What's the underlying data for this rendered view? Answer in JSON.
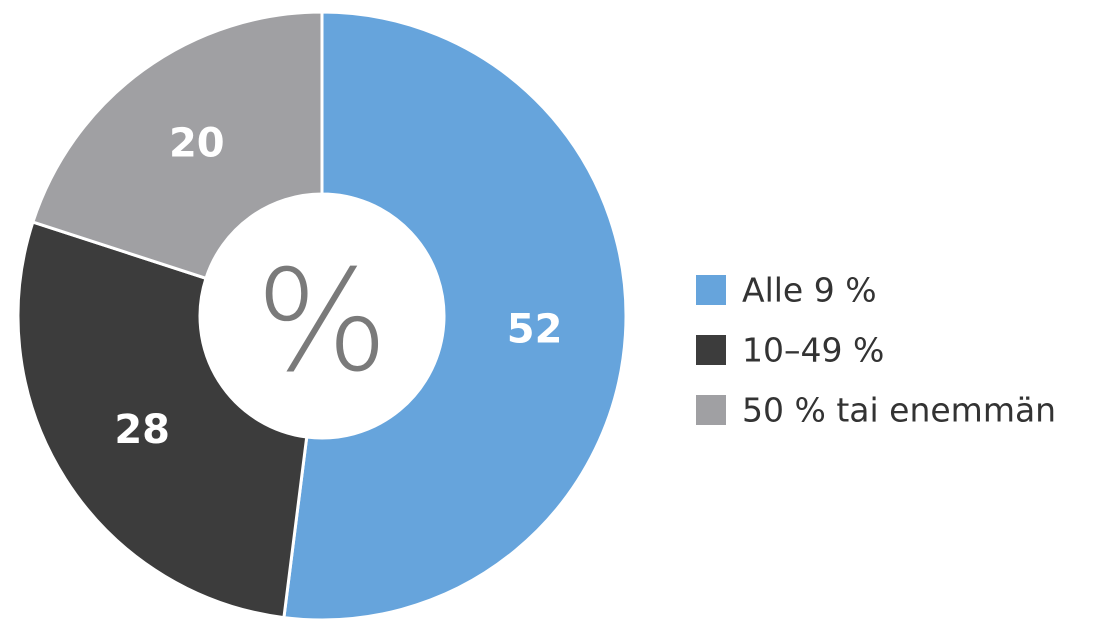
{
  "chart_data": {
    "type": "donut",
    "center_label": "%",
    "categories": [
      "Alle 9 %",
      "10–49 %",
      "50 % tai enemmän"
    ],
    "values": [
      52,
      28,
      20
    ],
    "colors": [
      "#66a4dc",
      "#3c3c3c",
      "#a0a0a3"
    ]
  }
}
